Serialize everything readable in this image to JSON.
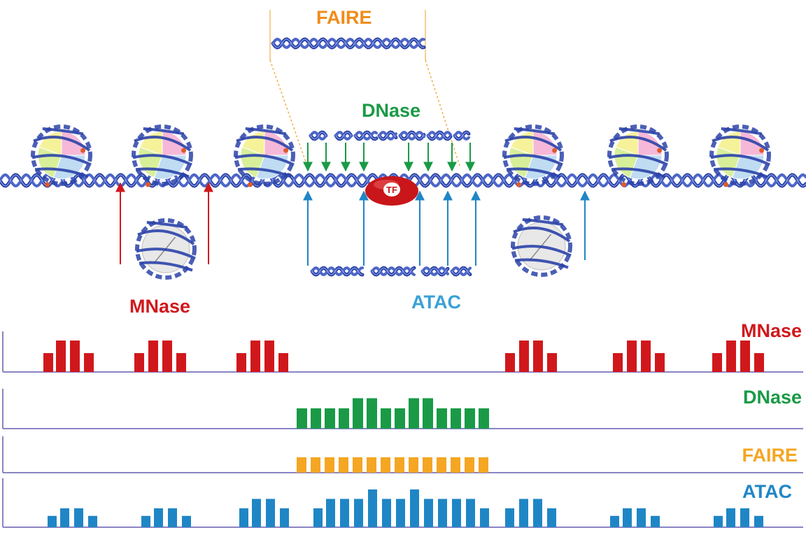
{
  "diagram": {
    "labels": {
      "faire_top": "FAIRE",
      "dnase_top": "DNase",
      "mnase_bottom": "MNase",
      "atac_bottom": "ATAC",
      "tf": "TF"
    },
    "colors": {
      "mnase": "#d0181c",
      "dnase": "#1a9a46",
      "faire": "#f5a623",
      "atac": "#1f86c6",
      "dna": "#2b43a8",
      "tf": "#c8161a",
      "baseline": "#8a84c4"
    }
  },
  "tracks": [
    {
      "name": "MNase",
      "bars": [
        [
          62,
          18
        ],
        [
          80,
          30
        ],
        [
          100,
          30
        ],
        [
          120,
          18
        ],
        [
          192,
          18
        ],
        [
          212,
          30
        ],
        [
          232,
          30
        ],
        [
          252,
          18
        ],
        [
          338,
          18
        ],
        [
          358,
          30
        ],
        [
          378,
          30
        ],
        [
          398,
          18
        ],
        [
          722,
          18
        ],
        [
          742,
          30
        ],
        [
          762,
          30
        ],
        [
          782,
          18
        ],
        [
          876,
          18
        ],
        [
          896,
          30
        ],
        [
          916,
          30
        ],
        [
          936,
          18
        ],
        [
          1018,
          18
        ],
        [
          1038,
          30
        ],
        [
          1058,
          30
        ],
        [
          1078,
          18
        ]
      ]
    },
    {
      "name": "DNase",
      "bars": [
        [
          424,
          20
        ],
        [
          444,
          20
        ],
        [
          464,
          20
        ],
        [
          484,
          20
        ],
        [
          504,
          30
        ],
        [
          524,
          30
        ],
        [
          544,
          20
        ],
        [
          564,
          20
        ],
        [
          584,
          30
        ],
        [
          604,
          30
        ],
        [
          624,
          20
        ],
        [
          644,
          20
        ],
        [
          664,
          20
        ],
        [
          684,
          20
        ]
      ]
    },
    {
      "name": "FAIRE",
      "bars": [
        [
          424,
          20
        ],
        [
          444,
          20
        ],
        [
          464,
          20
        ],
        [
          484,
          20
        ],
        [
          504,
          20
        ],
        [
          524,
          20
        ],
        [
          544,
          20
        ],
        [
          564,
          20
        ],
        [
          584,
          20
        ],
        [
          604,
          20
        ],
        [
          624,
          20
        ],
        [
          644,
          20
        ],
        [
          664,
          20
        ],
        [
          684,
          20
        ]
      ]
    },
    {
      "name": "ATAC",
      "bars": [
        [
          68,
          12
        ],
        [
          86,
          20
        ],
        [
          106,
          20
        ],
        [
          126,
          12
        ],
        [
          202,
          12
        ],
        [
          220,
          20
        ],
        [
          240,
          20
        ],
        [
          260,
          12
        ],
        [
          342,
          20
        ],
        [
          360,
          30
        ],
        [
          380,
          30
        ],
        [
          400,
          20
        ],
        [
          448,
          20
        ],
        [
          466,
          30
        ],
        [
          486,
          30
        ],
        [
          506,
          30
        ],
        [
          526,
          40
        ],
        [
          546,
          30
        ],
        [
          566,
          30
        ],
        [
          586,
          40
        ],
        [
          606,
          30
        ],
        [
          626,
          30
        ],
        [
          646,
          30
        ],
        [
          666,
          30
        ],
        [
          686,
          20
        ],
        [
          722,
          20
        ],
        [
          742,
          30
        ],
        [
          762,
          30
        ],
        [
          782,
          20
        ],
        [
          872,
          12
        ],
        [
          890,
          20
        ],
        [
          910,
          20
        ],
        [
          930,
          12
        ],
        [
          1020,
          12
        ],
        [
          1038,
          20
        ],
        [
          1058,
          20
        ],
        [
          1078,
          12
        ]
      ]
    }
  ]
}
